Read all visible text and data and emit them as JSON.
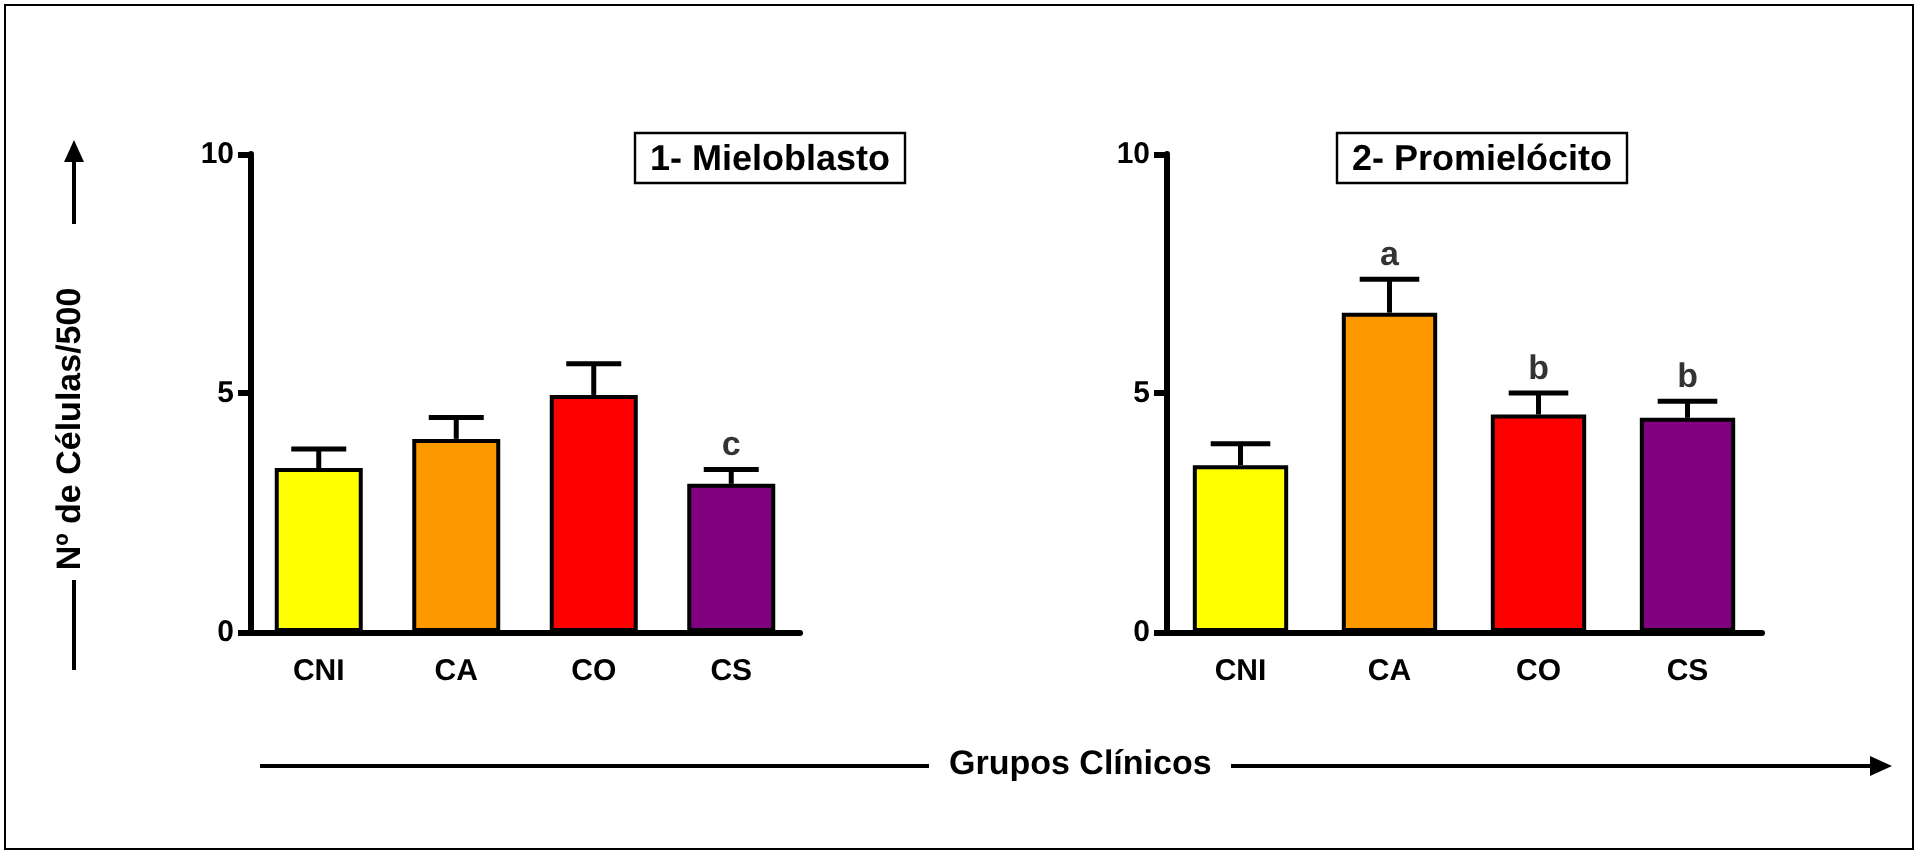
{
  "chart_data": [
    {
      "type": "bar",
      "title": "1- Mieloblasto",
      "ylabel": "Nº de Células/500",
      "xlabel": "Grupos Clínicos",
      "categories": [
        "CNI",
        "CA",
        "CO",
        "CS"
      ],
      "values": [
        3.43,
        4.04,
        4.96,
        3.1
      ],
      "errors": [
        0.4,
        0.45,
        0.65,
        0.3
      ],
      "colors": [
        "#ffff00",
        "#ff9900",
        "#ff0000",
        "#800080"
      ],
      "ylim": [
        0,
        10
      ],
      "yticks": [
        0,
        5,
        10
      ],
      "grid": false,
      "annotations": [
        {
          "text": "c",
          "x": "CS",
          "y": 3.4
        }
      ]
    },
    {
      "type": "bar",
      "title": "2- Promielócito",
      "categories": [
        "CNI",
        "CA",
        "CO",
        "CS"
      ],
      "values": [
        3.49,
        6.68,
        4.55,
        4.48
      ],
      "errors": [
        0.45,
        0.7,
        0.45,
        0.35
      ],
      "colors": [
        "#ffff00",
        "#ff9900",
        "#ff0000",
        "#800080"
      ],
      "ylim": [
        0,
        10
      ],
      "yticks": [
        0,
        5,
        10
      ],
      "grid": false,
      "annotations": [
        {
          "text": "a",
          "x": "CA",
          "y": 7.38
        },
        {
          "text": "b",
          "x": "CO",
          "y": 5.0
        },
        {
          "text": "b",
          "x": "CS",
          "y": 4.83
        }
      ]
    }
  ]
}
